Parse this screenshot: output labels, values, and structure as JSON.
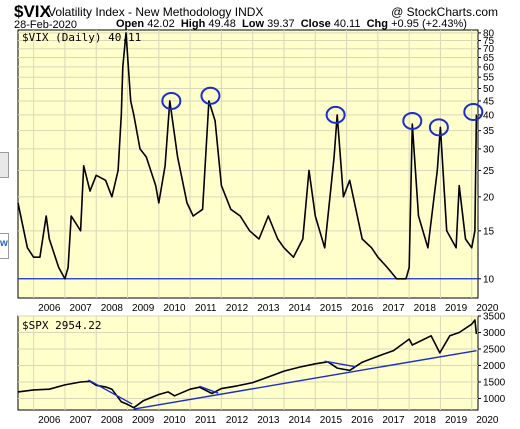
{
  "header": {
    "symbol": "$VIX",
    "index_name": "Volatility Index - New Methodology  INDX",
    "brand": "@ StockCharts.com",
    "date": "28-Feb-2020",
    "open_label": "Open",
    "open": "42.02",
    "high_label": "High",
    "high": "49.48",
    "low_label": "Low",
    "low": "39.37",
    "close_label": "Close",
    "close": "40.11",
    "chg_label": "Chg",
    "chg": "+0.95 (+2.43%)"
  },
  "colors": {
    "panel_bg": "#ffffcc",
    "price_line": "#000000",
    "trend_line": "#1a2ec8",
    "circle": "#1a2ec8",
    "grid": "#d8d8b8"
  },
  "chart_data": [
    {
      "type": "line",
      "label": "$VIX (Daily) 40.11",
      "scale": "log",
      "ylim": [
        8.5,
        82
      ],
      "yticks": [
        10,
        15,
        20,
        25,
        30,
        35,
        40,
        45,
        50,
        55,
        60,
        65,
        70,
        75,
        80
      ],
      "x_ticks": [
        "2006",
        "2007",
        "2008",
        "2009",
        "2010",
        "2011",
        "2012",
        "2013",
        "2014",
        "2015",
        "2016",
        "2017",
        "2018",
        "2019",
        "2020"
      ],
      "xlim": [
        2005.5,
        2020.2
      ],
      "series": [
        {
          "x": [
            2005.5,
            2005.8,
            2006.0,
            2006.2,
            2006.4,
            2006.5,
            2006.8,
            2007.0,
            2007.1,
            2007.2,
            2007.5,
            2007.6,
            2007.8,
            2008.0,
            2008.3,
            2008.5,
            2008.7,
            2008.8,
            2008.85,
            2008.95,
            2009.1,
            2009.2,
            2009.4,
            2009.6,
            2009.9,
            2010.0,
            2010.2,
            2010.35,
            2010.6,
            2010.9,
            2011.1,
            2011.4,
            2011.6,
            2011.8,
            2012.0,
            2012.3,
            2012.6,
            2012.9,
            2013.2,
            2013.5,
            2013.8,
            2014.0,
            2014.3,
            2014.6,
            2014.8,
            2015.0,
            2015.3,
            2015.6,
            2015.7,
            2015.9,
            2016.1,
            2016.5,
            2016.8,
            2017.0,
            2017.3,
            2017.6,
            2017.9,
            2018.0,
            2018.1,
            2018.3,
            2018.6,
            2018.9,
            2019.0,
            2019.2,
            2019.5,
            2019.6,
            2019.8,
            2020.0,
            2020.1,
            2020.15
          ],
          "y": [
            19,
            13,
            12,
            12,
            17,
            14,
            11,
            10,
            11,
            17,
            15,
            26,
            21,
            24,
            23,
            20,
            25,
            40,
            60,
            80,
            45,
            40,
            30,
            28,
            22,
            19,
            26,
            45,
            28,
            19,
            17,
            18,
            45,
            38,
            22,
            18,
            17,
            15,
            14,
            17,
            14,
            13,
            12,
            14,
            25,
            17,
            13,
            28,
            40,
            20,
            23,
            14,
            13,
            12,
            11,
            10,
            10,
            11,
            37,
            17,
            13,
            25,
            36,
            15,
            13,
            22,
            14,
            13,
            15,
            40.11
          ]
        }
      ],
      "horizontal_line": 10,
      "annotations": [
        {
          "type": "circle",
          "x": 2010.4,
          "y": 45
        },
        {
          "type": "circle",
          "x": 2011.65,
          "y": 47
        },
        {
          "type": "circle",
          "x": 2015.65,
          "y": 40
        },
        {
          "type": "circle",
          "x": 2018.1,
          "y": 38
        },
        {
          "type": "circle",
          "x": 2018.95,
          "y": 36
        },
        {
          "type": "circle",
          "x": 2020.05,
          "y": 41
        }
      ]
    },
    {
      "type": "line",
      "label": "$SPX 2954.22",
      "ylim": [
        650,
        3500
      ],
      "yticks": [
        1000,
        1500,
        2000,
        2500,
        3000,
        3500
      ],
      "x_ticks": [
        "2006",
        "2007",
        "2008",
        "2009",
        "2010",
        "2011",
        "2012",
        "2013",
        "2014",
        "2015",
        "2016",
        "2017",
        "2018",
        "2019",
        "2020"
      ],
      "xlim": [
        2005.5,
        2020.2
      ],
      "series": [
        {
          "x": [
            2005.5,
            2006.0,
            2006.5,
            2007.0,
            2007.5,
            2007.8,
            2008.0,
            2008.3,
            2008.5,
            2008.8,
            2009.0,
            2009.2,
            2009.5,
            2010.0,
            2010.3,
            2010.5,
            2011.0,
            2011.3,
            2011.7,
            2012.0,
            2012.5,
            2013.0,
            2013.5,
            2014.0,
            2014.5,
            2015.0,
            2015.4,
            2015.7,
            2016.1,
            2016.5,
            2017.0,
            2017.5,
            2018.0,
            2018.1,
            2018.7,
            2018.98,
            2019.3,
            2019.6,
            2020.0,
            2020.1,
            2020.15
          ],
          "y": [
            1200,
            1260,
            1280,
            1410,
            1500,
            1520,
            1400,
            1350,
            1280,
            900,
            820,
            720,
            930,
            1120,
            1200,
            1080,
            1280,
            1340,
            1150,
            1300,
            1380,
            1480,
            1650,
            1830,
            1950,
            2050,
            2110,
            1920,
            1850,
            2100,
            2280,
            2450,
            2800,
            2620,
            2900,
            2380,
            2900,
            3000,
            3250,
            3380,
            2954
          ]
        }
      ],
      "trendlines": [
        {
          "x": [
            2007.75,
            2009.15
          ],
          "y": [
            1560,
            830
          ]
        },
        {
          "x": [
            2011.3,
            2011.9
          ],
          "y": [
            1370,
            1160
          ]
        },
        {
          "x": [
            2015.3,
            2016.3
          ],
          "y": [
            2130,
            1960
          ]
        },
        {
          "x": [
            2009.2,
            2020.15
          ],
          "y": [
            680,
            2450
          ]
        }
      ]
    }
  ]
}
